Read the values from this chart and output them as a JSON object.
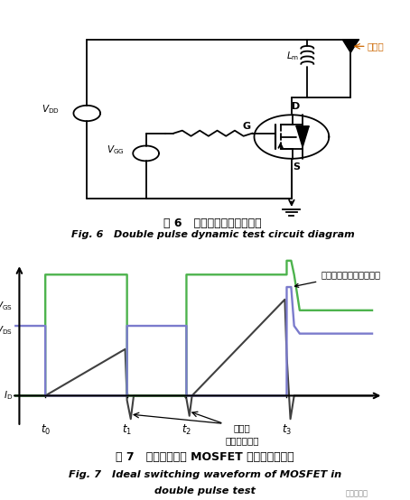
{
  "fig_width": 4.54,
  "fig_height": 5.54,
  "bg_color": "#ffffff",
  "circuit_title_cn": "图 6   双脉冲动态测试电路图",
  "circuit_title_en": "Fig. 6   Double pulse dynamic test circuit diagram",
  "waveform_title_cn": "图 7   双脉冲试验中 MOSFET 的理想开关波形",
  "waveform_title_en1": "Fig. 7   Ideal switching waveform of MOSFET in",
  "waveform_title_en2": "double pulse test",
  "annotation_spike": "杂散电感产生的电压尖峰",
  "annotation_diode1": "二极管",
  "annotation_diode2": "反向恢复电流",
  "vgs_color": "#4db34d",
  "vds_color": "#7b7bcc",
  "id_color": "#404040",
  "diode_label_color": "#cc6600",
  "watermark": "半导体在线"
}
